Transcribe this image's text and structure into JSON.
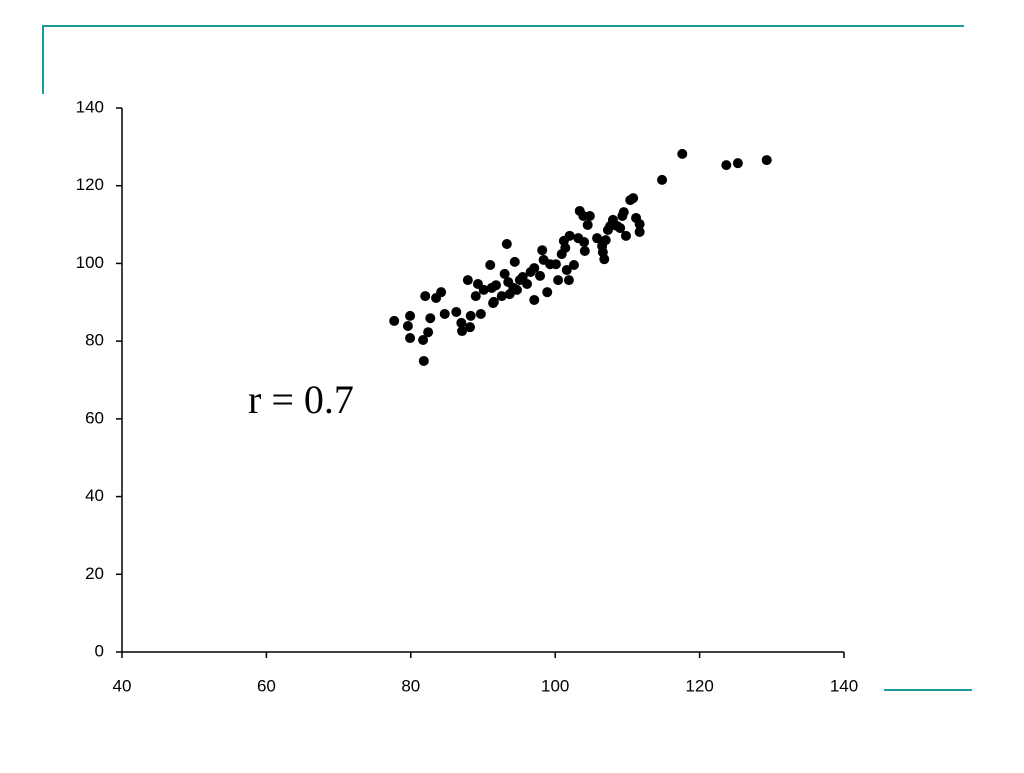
{
  "chart_data": {
    "type": "scatter",
    "annotation": "r = 0.7",
    "color": "#000000",
    "x": [
      77.7,
      79.9,
      79.6,
      79.9,
      81.7,
      82.0,
      81.8,
      82.4,
      82.7,
      83.5,
      84.2,
      84.7,
      86.3,
      87.0,
      87.1,
      87.9,
      88.3,
      88.2,
      89.0,
      89.3,
      89.7,
      90.1,
      91.0,
      91.2,
      91.5,
      91.4,
      91.8,
      92.6,
      93.0,
      93.3,
      93.5,
      93.7,
      94.2,
      94.4,
      94.7,
      95.1,
      95.5,
      96.1,
      96.6,
      97.1,
      97.1,
      97.9,
      98.2,
      98.4,
      98.9,
      99.3,
      100.1,
      100.4,
      100.9,
      101.2,
      101.4,
      101.6,
      101.9,
      102.0,
      102.6,
      103.2,
      103.4,
      103.9,
      104.0,
      104.1,
      104.5,
      104.8,
      105.8,
      106.5,
      106.6,
      106.8,
      107.0,
      107.3,
      107.6,
      108.0,
      108.6,
      109.0,
      109.3,
      109.5,
      109.8,
      110.4,
      110.8,
      111.2,
      111.7,
      111.7,
      114.8,
      117.6,
      123.7,
      125.3,
      129.3
    ],
    "y": [
      85.2,
      86.5,
      83.9,
      80.8,
      80.3,
      91.6,
      74.9,
      82.3,
      85.9,
      91.1,
      92.6,
      87.0,
      87.5,
      84.7,
      82.6,
      95.7,
      86.5,
      83.6,
      91.6,
      94.7,
      87.0,
      93.2,
      99.6,
      93.7,
      90.1,
      89.8,
      94.4,
      91.6,
      97.3,
      105.0,
      95.2,
      92.1,
      93.7,
      100.4,
      93.2,
      95.7,
      96.5,
      94.7,
      97.8,
      98.8,
      90.6,
      96.8,
      103.4,
      100.9,
      92.6,
      99.8,
      99.8,
      95.7,
      102.4,
      105.8,
      104.0,
      98.3,
      95.7,
      107.1,
      99.6,
      106.5,
      113.5,
      112.2,
      105.5,
      103.2,
      109.9,
      112.2,
      106.5,
      104.5,
      102.9,
      101.1,
      106.0,
      108.6,
      109.6,
      111.2,
      109.6,
      109.1,
      112.2,
      113.2,
      107.1,
      116.3,
      116.8,
      111.7,
      108.1,
      110.1,
      121.5,
      128.2,
      125.3,
      125.8,
      126.6
    ],
    "xlim": [
      40,
      140
    ],
    "ylim": [
      0,
      140
    ],
    "xticks": [
      40,
      60,
      80,
      100,
      120,
      140
    ],
    "yticks": [
      0,
      20,
      40,
      60,
      80,
      100,
      120,
      140
    ]
  }
}
